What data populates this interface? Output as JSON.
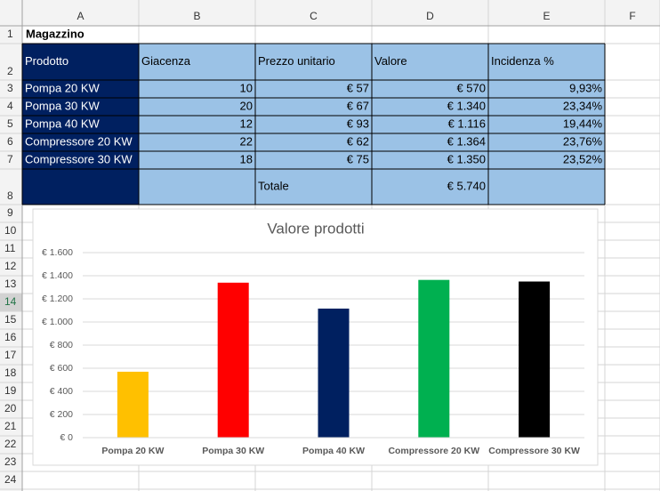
{
  "sheet": {
    "columns": [
      "A",
      "B",
      "C",
      "D",
      "E",
      "F"
    ],
    "rows": [
      1,
      2,
      3,
      4,
      5,
      6,
      7,
      8,
      9,
      10,
      11,
      12,
      13,
      14,
      15,
      16,
      17,
      18,
      19,
      20,
      21,
      22,
      23,
      24
    ]
  },
  "table": {
    "title": "Magazzino",
    "header": [
      "Prodotto",
      "Giacenza",
      "Prezzo unitario",
      "Valore",
      "Incidenza %"
    ],
    "rows": [
      [
        "Pompa 20 KW",
        "10",
        "€ 57",
        "€ 570",
        "9,93%"
      ],
      [
        "Pompa 30 KW",
        "20",
        "€ 67",
        "€ 1.340",
        "23,34%"
      ],
      [
        "Pompa 40 KW",
        "12",
        "€ 93",
        "€ 1.116",
        "19,44%"
      ],
      [
        "Compressore 20 KW",
        "22",
        "€ 62",
        "€ 1.364",
        "23,76%"
      ],
      [
        "Compressore 30 KW",
        "18",
        "€ 75",
        "€ 1.350",
        "23,52%"
      ]
    ],
    "total": {
      "label": "Totale",
      "value": "€ 5.740"
    }
  },
  "chart_data": {
    "type": "bar",
    "title": "Valore prodotti",
    "categories": [
      "Pompa 20 KW",
      "Pompa 30 KW",
      "Pompa 40 KW",
      "Compressore 20 KW",
      "Compressore 30 KW"
    ],
    "values": [
      570,
      1340,
      1116,
      1364,
      1350
    ],
    "colors": [
      "#ffc000",
      "#ff0000",
      "#002060",
      "#00b050",
      "#000000"
    ],
    "ylim": [
      0,
      1600
    ],
    "yticks": [
      {
        "value": 0,
        "label": "€ 0"
      },
      {
        "value": 200,
        "label": "€ 200"
      },
      {
        "value": 400,
        "label": "€ 400"
      },
      {
        "value": 600,
        "label": "€ 600"
      },
      {
        "value": 800,
        "label": "€ 800"
      },
      {
        "value": 1000,
        "label": "€ 1.000"
      },
      {
        "value": 1200,
        "label": "€ 1.200"
      },
      {
        "value": 1400,
        "label": "€ 1.400"
      },
      {
        "value": 1600,
        "label": "€ 1.600"
      }
    ],
    "grid": true
  }
}
